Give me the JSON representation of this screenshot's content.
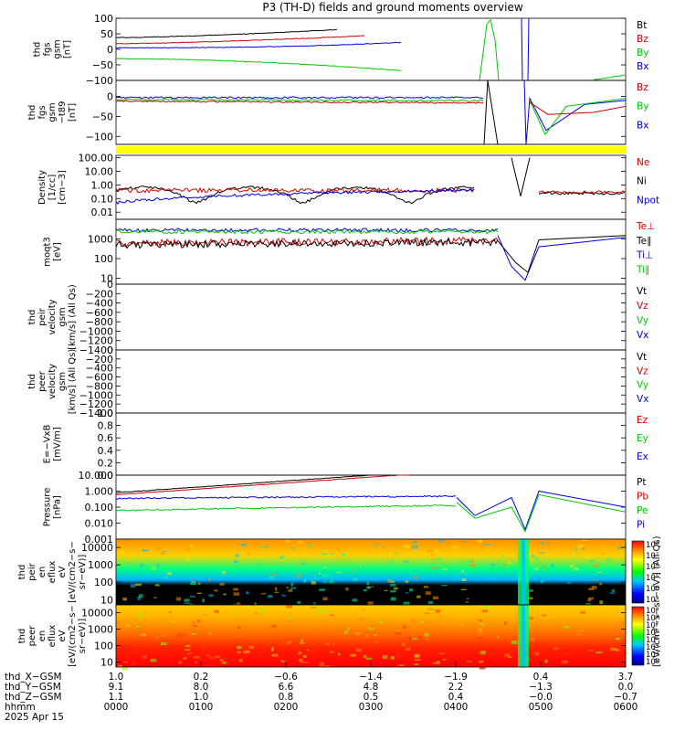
{
  "title": "P3 (TH-D) fields and ground moments overview",
  "date_label": "2025 Apr 15",
  "colors": {
    "black": "#000000",
    "red": "#d40000",
    "green": "#00c800",
    "blue": "#0000e0",
    "yellow": "#ffff00"
  },
  "chart_data": [
    {
      "type": "line",
      "id": "fgs",
      "ylabel": [
        "thd",
        "fgs",
        "gsm",
        "[nT]"
      ],
      "ylim": [
        -100,
        100
      ],
      "yticks": [
        "100",
        "50",
        "0",
        "−50",
        "−100"
      ],
      "legend": [
        {
          "name": "Bt",
          "color": "black"
        },
        {
          "name": "Bz",
          "color": "red"
        },
        {
          "name": "By",
          "color": "green"
        },
        {
          "name": "Bx",
          "color": "blue"
        }
      ]
    },
    {
      "type": "line",
      "id": "fgs_t89",
      "ylabel": [
        "thd",
        "fgs",
        "gsm",
        "−t89",
        "[nT]"
      ],
      "ylim": [
        -120,
        40
      ],
      "yticks": [
        "0",
        "−50",
        "−100"
      ],
      "legend": [
        {
          "name": "Bz",
          "color": "red"
        },
        {
          "name": "By",
          "color": "green"
        },
        {
          "name": "Bx",
          "color": "blue"
        }
      ]
    },
    {
      "type": "bar",
      "id": "flag",
      "color": "yellow"
    },
    {
      "type": "line",
      "id": "density",
      "ylabel": [
        "Density",
        "[1/cc]",
        "[cm−3]"
      ],
      "yscale": "log",
      "ylim": [
        0.003,
        150
      ],
      "yticks": [
        "100.00",
        "10.00",
        "1.00",
        "0.10",
        "0.01"
      ],
      "legend": [
        {
          "name": "Ne",
          "color": "red"
        },
        {
          "name": "Ni",
          "color": "black"
        },
        {
          "name": "Npot",
          "color": "blue"
        }
      ]
    },
    {
      "type": "line",
      "id": "temperature",
      "ylabel": [
        "moqt3",
        "[eV]"
      ],
      "yscale": "log",
      "ylim": [
        5,
        10000
      ],
      "yticks": [
        "1000",
        "100",
        "10"
      ],
      "legend": [
        {
          "name": "Te⊥",
          "color": "red"
        },
        {
          "name": "Te∥",
          "color": "black"
        },
        {
          "name": "Ti⊥",
          "color": "blue"
        },
        {
          "name": "Ti∥",
          "color": "green"
        }
      ]
    },
    {
      "type": "line",
      "id": "peir_velocity",
      "ylabel": [
        "thd",
        "peir",
        "velocity",
        "gsm",
        "[km/s] (All Qs)"
      ],
      "ylim": [
        -1400,
        0
      ],
      "yticks": [
        "0",
        "−200",
        "−400",
        "−600",
        "−800",
        "−1000",
        "−1200",
        "−1400"
      ],
      "legend": [
        {
          "name": "Vt",
          "color": "black"
        },
        {
          "name": "Vz",
          "color": "red"
        },
        {
          "name": "Vy",
          "color": "green"
        },
        {
          "name": "Vx",
          "color": "blue"
        }
      ]
    },
    {
      "type": "line",
      "id": "peer_velocity",
      "ylabel": [
        "thd",
        "peer",
        "velocity",
        "gsm",
        "[km/s] (All Qs)"
      ],
      "ylim": [
        -1400,
        0
      ],
      "yticks": [
        "0",
        "−200",
        "−400",
        "−600",
        "−800",
        "−1000",
        "−1200",
        "−1400"
      ],
      "legend": [
        {
          "name": "Vt",
          "color": "black"
        },
        {
          "name": "Vz",
          "color": "red"
        },
        {
          "name": "Vy",
          "color": "green"
        },
        {
          "name": "Vx",
          "color": "blue"
        }
      ]
    },
    {
      "type": "line",
      "id": "efield",
      "ylabel": [
        "E=−VxB",
        "[mV/m]"
      ],
      "ylim": [
        0,
        1
      ],
      "yticks": [
        "1.0",
        "0.8",
        "0.6",
        "0.4",
        "0.2",
        "0.0"
      ],
      "legend": [
        {
          "name": "Ez",
          "color": "red"
        },
        {
          "name": "Ey",
          "color": "green"
        },
        {
          "name": "Ex",
          "color": "blue"
        }
      ]
    },
    {
      "type": "line",
      "id": "pressure",
      "ylabel": [
        "Pressure",
        "[nPa]"
      ],
      "yscale": "log",
      "ylim": [
        0.001,
        10
      ],
      "yticks": [
        "10.000",
        "1.000",
        "0.100",
        "0.010",
        "0.001"
      ],
      "legend": [
        {
          "name": "Pt",
          "color": "black"
        },
        {
          "name": "Pb",
          "color": "red"
        },
        {
          "name": "Pe",
          "color": "green"
        },
        {
          "name": "Pi",
          "color": "blue"
        }
      ]
    },
    {
      "type": "heatmap",
      "id": "peir_spec",
      "ylabel": [
        "thd",
        "peir",
        "en",
        "eflux",
        "eV",
        "[eV/(cm2−s−",
        "sr−eV)]"
      ],
      "yscale": "log",
      "ylim": [
        5,
        30000
      ],
      "yticks": [
        "10000",
        "1000",
        "100",
        "10"
      ],
      "colorbar_ticks": [
        "10⁸",
        "10⁷",
        "10⁶",
        "10⁵",
        "10⁴",
        "10³"
      ],
      "colorbar_label": "[eV/(cm²−s−sr−eV)] (All Qs)"
    },
    {
      "type": "heatmap",
      "id": "peer_spec",
      "ylabel": [
        "thd",
        "peer",
        "en",
        "eflux",
        "eV",
        "[eV/(cm2−s−",
        "sr−eV)]"
      ],
      "yscale": "log",
      "ylim": [
        5,
        30000
      ],
      "yticks": [
        "10000",
        "1000",
        "100",
        "10"
      ],
      "colorbar_ticks": [
        "10⁹",
        "10⁸",
        "10⁷",
        "10⁶",
        "10⁵",
        "10⁴",
        "10³",
        "10²"
      ],
      "colorbar_label": "[eV/(cm²−s−sr−eV)] (All Qs)"
    }
  ],
  "x_axis": {
    "rows": [
      {
        "label": "thd_X−GSM",
        "values": [
          "1.0",
          "0.2",
          "−0.6",
          "−1.4",
          "−1.9",
          "0.4",
          "3.7"
        ]
      },
      {
        "label": "thd_Y−GSM",
        "values": [
          "9.1",
          "8.0",
          "6.6",
          "4.8",
          "2.2",
          "−1.3",
          "0.0"
        ]
      },
      {
        "label": "thd_Z−GSM",
        "values": [
          "1.1",
          "1.0",
          "0.8",
          "0.5",
          "0.4",
          "−0.0",
          "−0.7"
        ]
      },
      {
        "label": "hhmm",
        "values": [
          "0000",
          "0100",
          "0200",
          "0300",
          "0400",
          "0500",
          "0600"
        ]
      }
    ]
  }
}
